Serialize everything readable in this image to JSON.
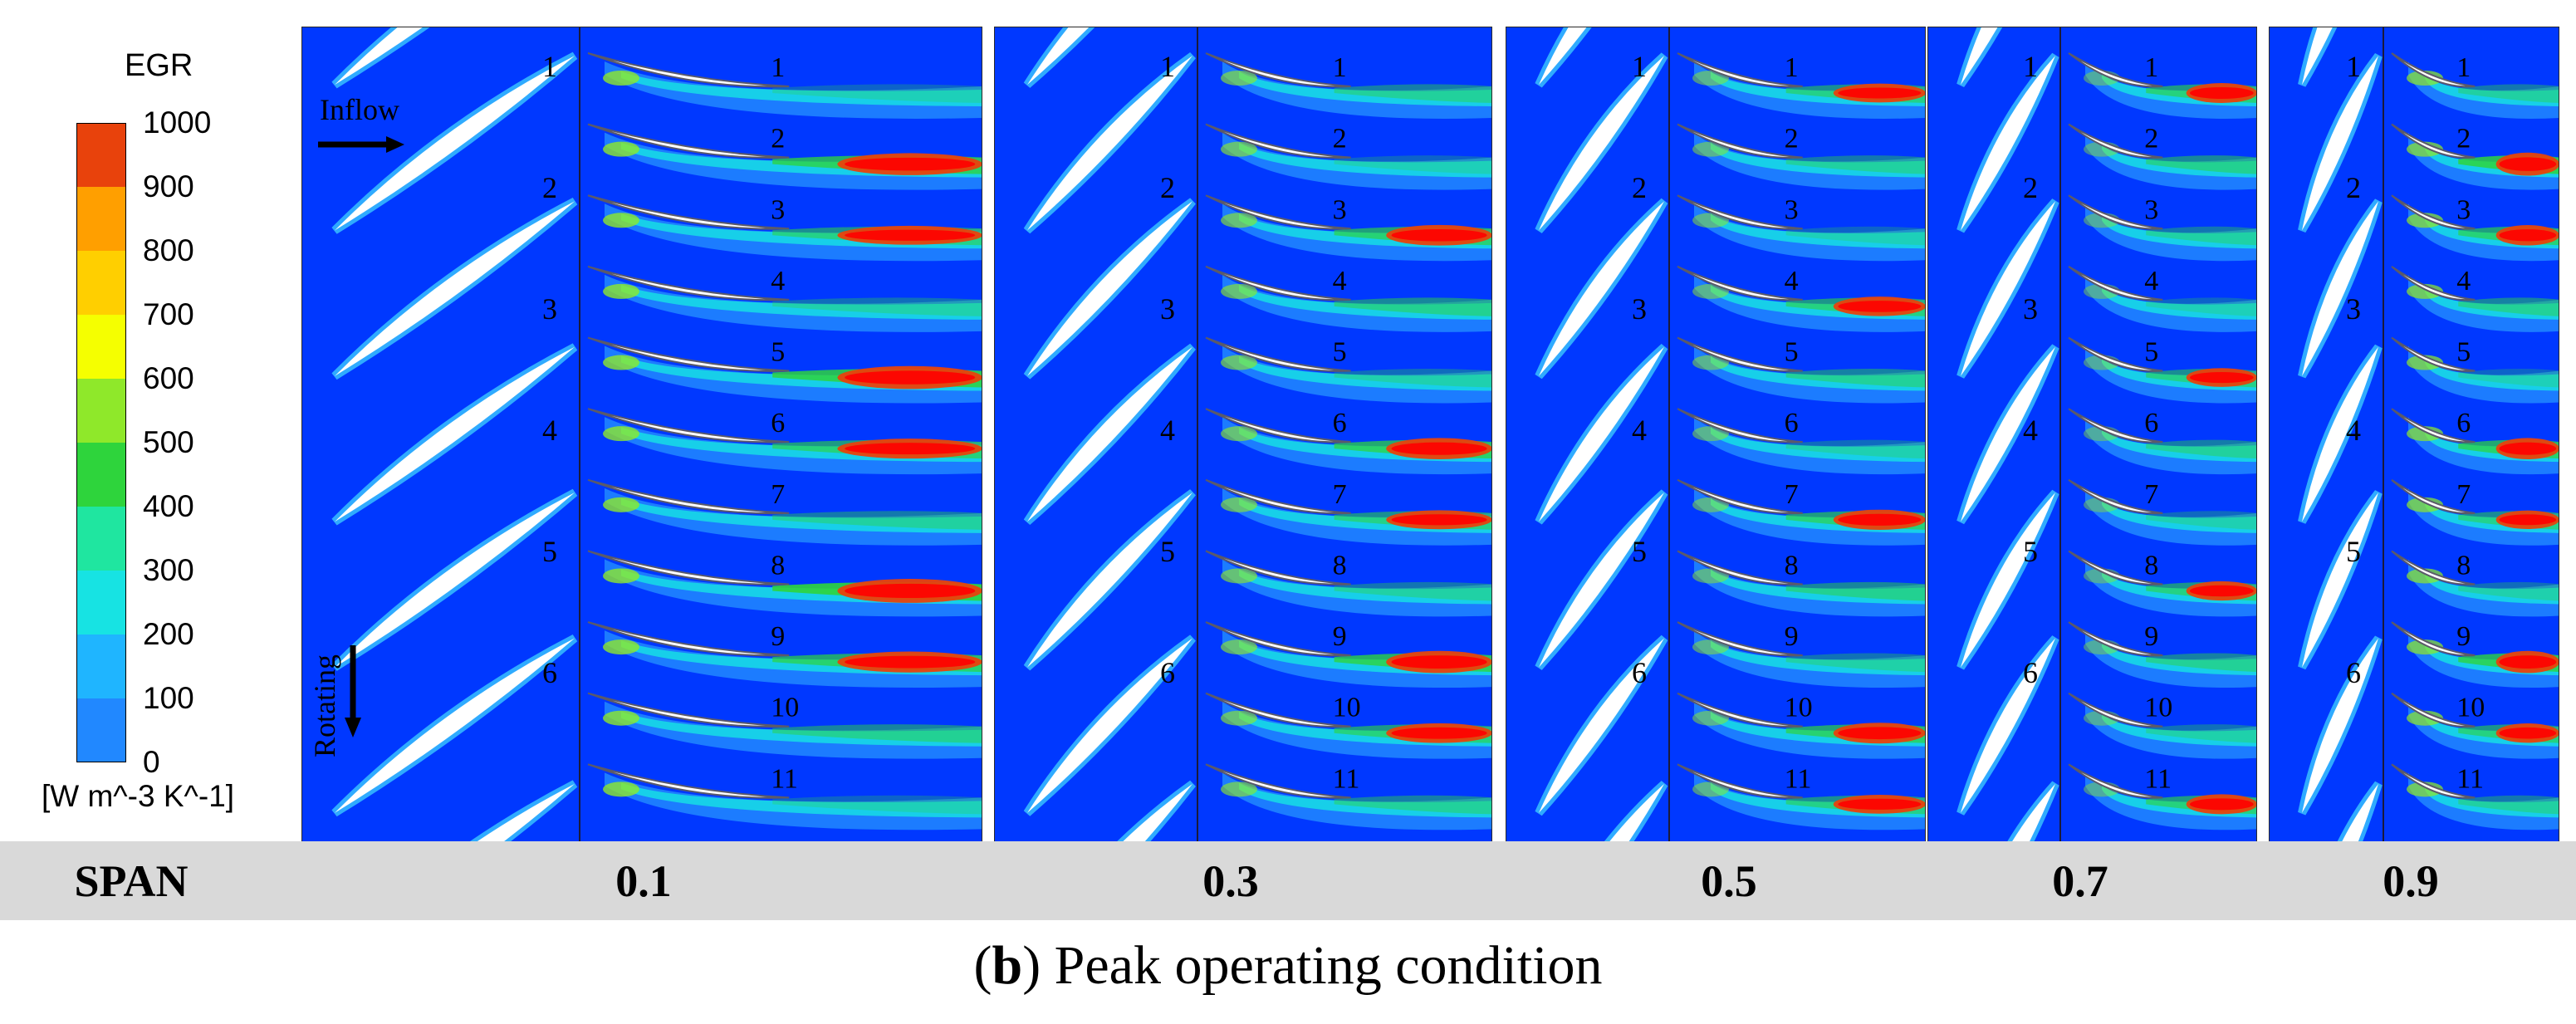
{
  "colorbar": {
    "title": "EGR",
    "unit": "[W m^-3 K^-1]",
    "ticks": [
      "1000",
      "900",
      "800",
      "700",
      "600",
      "500",
      "400",
      "300",
      "200",
      "100",
      "0"
    ],
    "colors": [
      "#e8420c",
      "#ff9f00",
      "#ffcf00",
      "#f5ff00",
      "#8fe82a",
      "#2ed43c",
      "#1fe6a0",
      "#17e3e3",
      "#1fb5ff",
      "#2188ff",
      "#0038ff"
    ]
  },
  "annotations": {
    "inflow": "Inflow",
    "rotating": "Rotating"
  },
  "span_row": {
    "label": "SPAN",
    "values": [
      "0.1",
      "0.3",
      "0.5",
      "0.7",
      "0.9"
    ]
  },
  "caption": {
    "letter": "b",
    "text": " Peak operating condition"
  },
  "stator_labels": [
    "1",
    "2",
    "3",
    "4",
    "5",
    "6"
  ],
  "rotor_labels": [
    "1",
    "2",
    "3",
    "4",
    "5",
    "6",
    "7",
    "8",
    "9",
    "10",
    "11"
  ],
  "colors": {
    "background_field": "#0038ff",
    "blade": "#ffffff",
    "span_bar": "#d9d9d9"
  }
}
